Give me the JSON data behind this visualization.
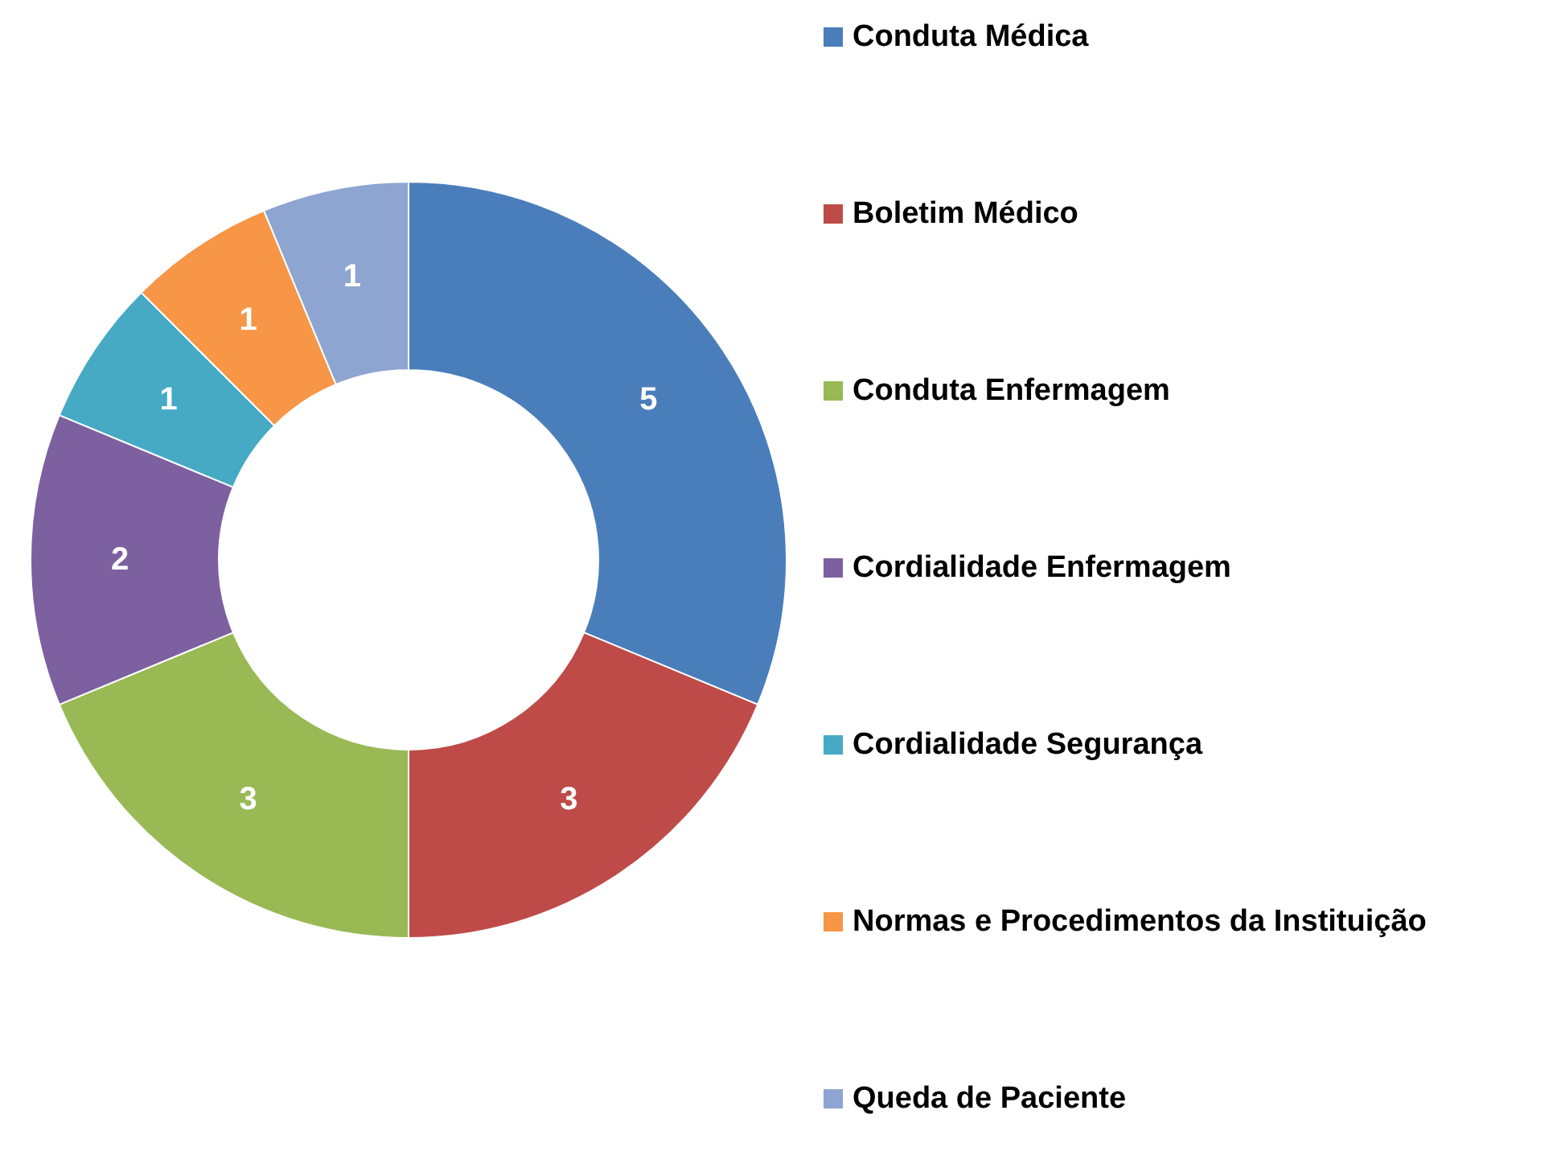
{
  "chart_data": {
    "type": "donut",
    "categories": [
      "Conduta Médica",
      "Boletim Médico",
      "Conduta Enfermagem",
      "Cordialidade Enfermagem",
      "Cordialidade Segurança",
      "Normas e Procedimentos da Instituição",
      "Queda de Paciente"
    ],
    "values": [
      5,
      3,
      3,
      2,
      1,
      1,
      1
    ],
    "colors": [
      "#4a7ebb",
      "#be4b48",
      "#98b954",
      "#7d60a0",
      "#46aac5",
      "#f79646",
      "#8da5d0"
    ],
    "data_labels": true,
    "legend": "right"
  }
}
